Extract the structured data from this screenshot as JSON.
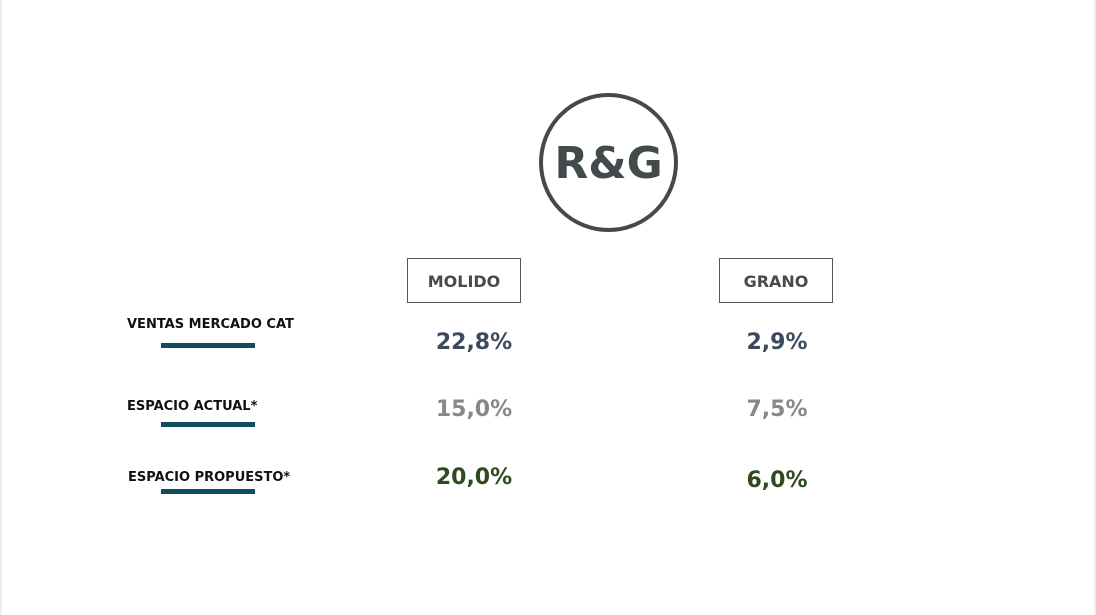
{
  "logo": {
    "text": "R&G"
  },
  "columns": {
    "molido": "MOLIDO",
    "grano": "GRANO"
  },
  "rows": [
    {
      "label": "VENTAS MERCADO CAT",
      "molido": "22,8%",
      "grano": "2,9%",
      "color": "#3b4a5e"
    },
    {
      "label": "ESPACIO ACTUAL*",
      "molido": "15,0%",
      "grano": "7,5%",
      "color": "#888888"
    },
    {
      "label": "ESPACIO PROPUESTO*",
      "molido": "20,0%",
      "grano": "6,0%",
      "color": "#2f4a1e"
    }
  ],
  "accent_color": "#0f4c5c"
}
